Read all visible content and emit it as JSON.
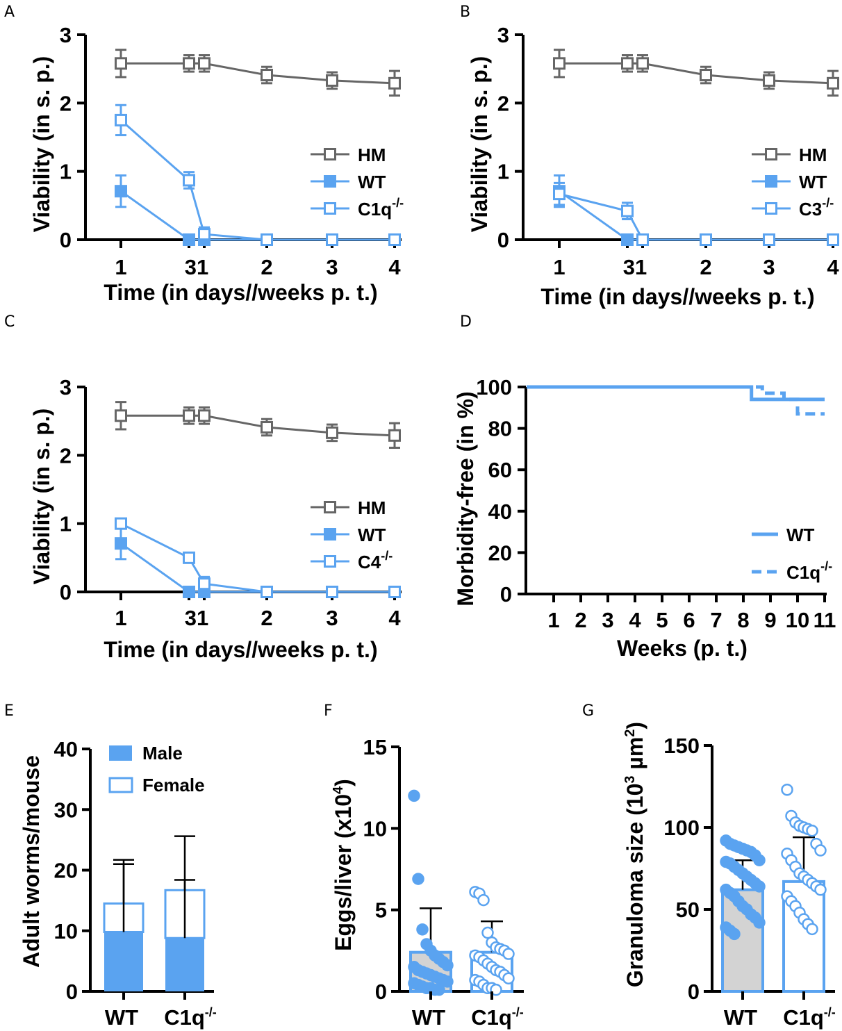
{
  "colors": {
    "hm": "#666666",
    "blue": "#5aa3f0",
    "black": "#000000",
    "bar_gray": "#d3d3d3"
  },
  "chart_data": [
    {
      "panel": "A",
      "type": "line",
      "ylabel": "Viability (in s. p.)",
      "xlabel": "Time (in days//weeks p. t.)",
      "ylim": [
        0,
        3
      ],
      "yticks": [
        "0",
        "1",
        "2",
        "3"
      ],
      "xticks": [
        "1",
        "3",
        "1",
        "2",
        "3",
        "4"
      ],
      "xtick_labels_shown": [
        "1",
        "31",
        "2",
        "3",
        "4"
      ],
      "legend": [
        "HM",
        "WT",
        "C1q"
      ],
      "legend_sup": [
        "",
        "",
        "-/-"
      ],
      "series": [
        {
          "name": "HM",
          "marker": "open-square",
          "color": "hm",
          "x": [
            1,
            2,
            3,
            4,
            5,
            6
          ],
          "y": [
            2.58,
            2.58,
            2.58,
            2.41,
            2.33,
            2.29
          ],
          "err": [
            0.2,
            0.12,
            0.12,
            0.12,
            0.12,
            0.18
          ]
        },
        {
          "name": "WT",
          "marker": "filled-square",
          "color": "blue",
          "x": [
            1,
            2,
            3,
            4,
            5,
            6
          ],
          "y": [
            0.71,
            0.0,
            0.0,
            0.0,
            0.0,
            0.0
          ],
          "err": [
            0.23,
            0,
            0,
            0,
            0,
            0
          ]
        },
        {
          "name": "C1q-/-",
          "marker": "open-square",
          "color": "blue",
          "x": [
            1,
            2,
            3,
            4,
            5,
            6
          ],
          "y": [
            1.75,
            0.87,
            0.08,
            0.0,
            0.0,
            0.0
          ],
          "err": [
            0.22,
            0.12,
            0.1,
            0,
            0,
            0
          ]
        }
      ]
    },
    {
      "panel": "B",
      "type": "line",
      "ylabel": "Viability (in s. p.)",
      "xlabel": "Time (in days//weeks p. t.)",
      "ylim": [
        0,
        3
      ],
      "yticks": [
        "0",
        "1",
        "2",
        "3"
      ],
      "xtick_labels_shown": [
        "1",
        "31",
        "2",
        "3",
        "4"
      ],
      "legend": [
        "HM",
        "WT",
        "C3"
      ],
      "legend_sup": [
        "",
        "",
        "-/-"
      ],
      "series": [
        {
          "name": "HM",
          "marker": "open-square",
          "color": "hm",
          "x": [
            1,
            2,
            3,
            4,
            5,
            6
          ],
          "y": [
            2.58,
            2.58,
            2.58,
            2.41,
            2.33,
            2.29
          ],
          "err": [
            0.2,
            0.12,
            0.12,
            0.12,
            0.12,
            0.18
          ]
        },
        {
          "name": "WT",
          "marker": "filled-square",
          "color": "blue",
          "x": [
            1,
            2,
            3,
            4,
            5,
            6
          ],
          "y": [
            0.71,
            0.0,
            0.0,
            0.0,
            0.0,
            0.0
          ],
          "err": [
            0.23,
            0,
            0,
            0,
            0,
            0
          ]
        },
        {
          "name": "C3-/-",
          "marker": "open-square",
          "color": "blue",
          "x": [
            1,
            2,
            3,
            4,
            5,
            6
          ],
          "y": [
            0.67,
            0.42,
            0.0,
            0.0,
            0.0,
            0.0
          ],
          "err": [
            0.16,
            0.12,
            0,
            0,
            0,
            0
          ]
        }
      ]
    },
    {
      "panel": "C",
      "type": "line",
      "ylabel": "Viability (in s. p.)",
      "xlabel": "Time (in days//weeks p. t.)",
      "ylim": [
        0,
        3
      ],
      "yticks": [
        "0",
        "1",
        "2",
        "3"
      ],
      "xtick_labels_shown": [
        "1",
        "31",
        "2",
        "3",
        "4"
      ],
      "legend": [
        "HM",
        "WT",
        "C4"
      ],
      "legend_sup": [
        "",
        "",
        "-/-"
      ],
      "series": [
        {
          "name": "HM",
          "marker": "open-square",
          "color": "hm",
          "x": [
            1,
            2,
            3,
            4,
            5,
            6
          ],
          "y": [
            2.58,
            2.58,
            2.58,
            2.41,
            2.33,
            2.29
          ],
          "err": [
            0.2,
            0.12,
            0.12,
            0.12,
            0.12,
            0.18
          ]
        },
        {
          "name": "WT",
          "marker": "filled-square",
          "color": "blue",
          "x": [
            1,
            2,
            3,
            4,
            5,
            6
          ],
          "y": [
            0.71,
            0.0,
            0.0,
            0.0,
            0.0,
            0.0
          ],
          "err": [
            0.23,
            0,
            0,
            0,
            0,
            0
          ]
        },
        {
          "name": "C4-/-",
          "marker": "open-square",
          "color": "blue",
          "x": [
            1,
            2,
            3,
            4,
            5,
            6
          ],
          "y": [
            1.0,
            0.5,
            0.12,
            0.0,
            0.0,
            0.0
          ],
          "err": [
            0.02,
            0.02,
            0.1,
            0,
            0,
            0
          ]
        }
      ]
    },
    {
      "panel": "D",
      "type": "line",
      "ylabel": "Morbidity-free (in %)",
      "xlabel": "Weeks (p. t.)",
      "ylim": [
        0,
        100
      ],
      "yticks": [
        "0",
        "20",
        "40",
        "60",
        "80",
        "100"
      ],
      "xlim": [
        0,
        11
      ],
      "xticks": [
        "1",
        "2",
        "3",
        "4",
        "5",
        "6",
        "7",
        "8",
        "9",
        "10",
        "11"
      ],
      "legend": [
        "WT",
        "C1q"
      ],
      "legend_sup": [
        "",
        "-/-"
      ],
      "series": [
        {
          "name": "WT",
          "style": "solid",
          "steps": [
            [
              0,
              100
            ],
            [
              8.3,
              100
            ],
            [
              8.3,
              94
            ],
            [
              11,
              94
            ]
          ]
        },
        {
          "name": "C1q-/-",
          "style": "dashed",
          "steps": [
            [
              0,
              100
            ],
            [
              8.7,
              100
            ],
            [
              8.7,
              97
            ],
            [
              9.5,
              97
            ],
            [
              9.5,
              94
            ],
            [
              10,
              94
            ],
            [
              10,
              87
            ],
            [
              11,
              87
            ]
          ]
        }
      ]
    },
    {
      "panel": "E",
      "type": "bar",
      "ylabel": "Adult worms/mouse",
      "ylim": [
        0,
        40
      ],
      "yticks": [
        "0",
        "10",
        "20",
        "30",
        "40"
      ],
      "categories": [
        "WT",
        "C1q"
      ],
      "category_sup": [
        "",
        "-/-"
      ],
      "legend": [
        "Male",
        "Female"
      ],
      "series": [
        {
          "name": "Male",
          "values": [
            9.8,
            8.8
          ],
          "err_up": [
            11.2,
            9.6
          ]
        },
        {
          "name": "Female",
          "values": [
            4.7,
            7.9
          ],
          "err_up": [
            7.2,
            8.9
          ]
        }
      ]
    },
    {
      "panel": "F",
      "type": "bar",
      "ylabel": "Eggs/liver (x10",
      "ylabel_sup": "4",
      "ylabel_end": ")",
      "ylim": [
        0,
        15
      ],
      "yticks": [
        "0",
        "5",
        "10",
        "15"
      ],
      "categories": [
        "WT",
        "C1q"
      ],
      "category_sup": [
        "",
        "-/-"
      ],
      "means": [
        2.4,
        2.4
      ],
      "err_up": [
        5.1,
        4.3
      ],
      "points": [
        [
          12.0,
          6.9,
          3.8,
          2.9,
          2.5,
          2.2,
          2.0,
          1.8,
          1.6,
          1.5,
          1.3,
          1.2,
          1.1,
          1.0,
          0.9,
          0.8,
          0.7,
          0.6,
          0.5,
          0.4,
          0.3,
          0.2,
          0.2,
          0.1,
          0.1
        ],
        [
          6.1,
          6.0,
          5.6,
          3.6,
          3.0,
          2.7,
          2.6,
          2.5,
          2.3,
          2.2,
          2.1,
          1.9,
          1.7,
          1.5,
          1.3,
          1.2,
          1.0,
          0.8,
          0.7,
          0.6,
          0.4,
          0.2,
          0.2,
          0.1
        ]
      ]
    },
    {
      "panel": "G",
      "type": "bar",
      "ylabel": "Granuloma size (10",
      "ylabel_sup": "3",
      "ylabel_mid": " µm",
      "ylabel_sup2": "2",
      "ylabel_end": ")",
      "ylim": [
        0,
        150
      ],
      "yticks": [
        "0",
        "50",
        "100",
        "150"
      ],
      "categories": [
        "WT",
        "C1q"
      ],
      "category_sup": [
        "",
        "-/-"
      ],
      "means": [
        62,
        67
      ],
      "err_up": [
        80,
        94
      ],
      "points": [
        [
          92,
          90,
          89,
          88,
          87,
          86,
          85,
          83,
          80,
          79,
          78,
          76,
          74,
          72,
          70,
          68,
          66,
          64,
          62,
          60,
          58,
          55,
          52,
          50,
          47,
          45,
          42,
          39,
          37,
          35
        ],
        [
          123,
          107,
          103,
          101,
          100,
          99,
          98,
          90,
          86,
          84,
          80,
          76,
          72,
          70,
          68,
          66,
          64,
          62,
          58,
          55,
          52,
          48,
          44,
          41,
          38
        ]
      ]
    }
  ],
  "panel_letters": [
    "A",
    "B",
    "C",
    "D",
    "E",
    "F",
    "G"
  ]
}
